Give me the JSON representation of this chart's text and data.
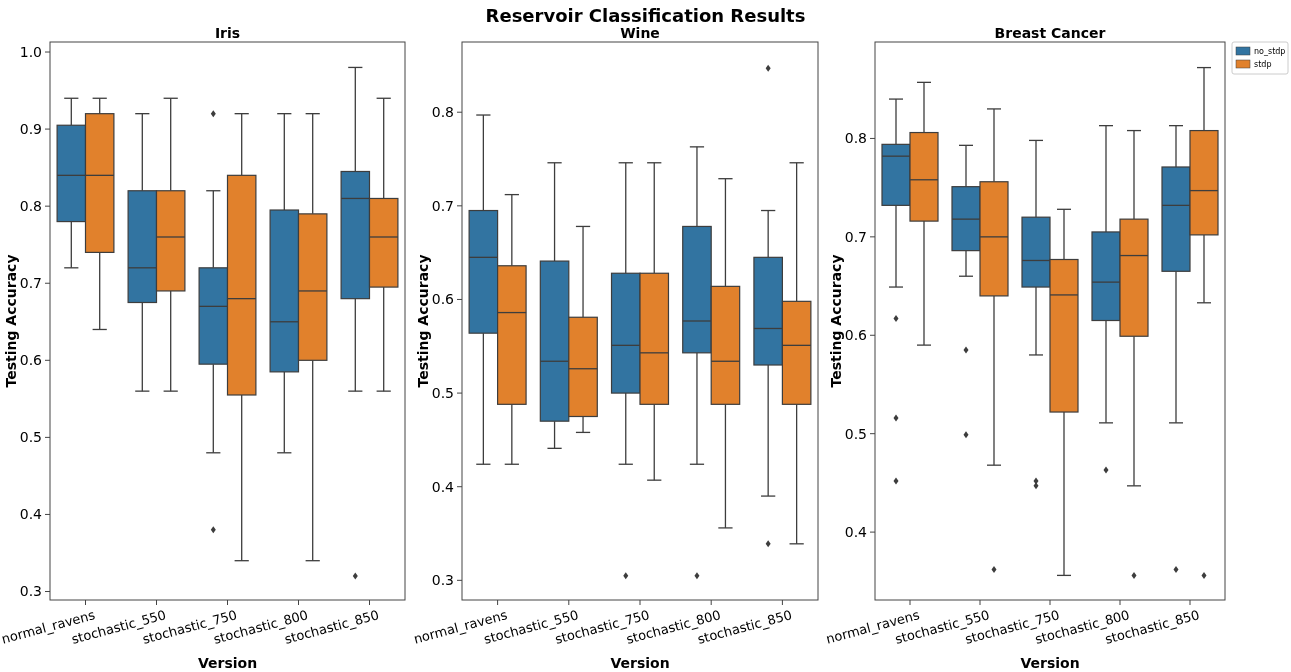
{
  "chart_data": [
    {
      "type": "box",
      "title": "Iris",
      "xlabel": "Version",
      "ylabel": "Testing Accuracy",
      "annotations": [
        "Reservoir Classification Results"
      ],
      "categories": [
        "normal_ravens",
        "stochastic_550",
        "stochastic_750",
        "stochastic_800",
        "stochastic_850"
      ],
      "ylim": [
        0.289,
        1.013
      ],
      "yticks": [
        0.3,
        0.4,
        0.5,
        0.6,
        0.7,
        0.8,
        0.9,
        {
          "value": 1,
          "label": "1.0"
        }
      ],
      "legend": false,
      "series": [
        {
          "color": "#3274a1",
          "boxes": [
            {
              "low": 0.72,
              "q1": 0.78,
              "median": 0.84,
              "q3": 0.905,
              "high": 0.94
            },
            {
              "low": 0.56,
              "q1": 0.675,
              "median": 0.72,
              "q3": 0.82,
              "high": 0.92
            },
            {
              "low": 0.48,
              "q1": 0.595,
              "median": 0.67,
              "q3": 0.72,
              "high": 0.82,
              "outliers": [
                0.92,
                0.38
              ]
            },
            {
              "low": 0.48,
              "q1": 0.585,
              "median": 0.65,
              "q3": 0.795,
              "high": 0.92
            },
            {
              "low": 0.56,
              "q1": 0.68,
              "median": 0.81,
              "q3": 0.845,
              "high": 0.98,
              "outliers": [
                0.32
              ]
            }
          ]
        },
        {
          "color": "#e1812c",
          "boxes": [
            {
              "low": 0.64,
              "q1": 0.74,
              "median": 0.84,
              "q3": 0.92,
              "high": 0.94
            },
            {
              "low": 0.56,
              "q1": 0.69,
              "median": 0.76,
              "q3": 0.82,
              "high": 0.94
            },
            {
              "low": 0.34,
              "q1": 0.555,
              "median": 0.68,
              "q3": 0.84,
              "high": 0.92
            },
            {
              "low": 0.34,
              "q1": 0.6,
              "median": 0.69,
              "q3": 0.79,
              "high": 0.92
            },
            {
              "low": 0.56,
              "q1": 0.695,
              "median": 0.76,
              "q3": 0.81,
              "high": 0.94
            }
          ]
        }
      ]
    },
    {
      "type": "box",
      "title": "Wine",
      "xlabel": "Version",
      "ylabel": "Testing Accuracy",
      "categories": [
        "normal_ravens",
        "stochastic_550",
        "stochastic_750",
        "stochastic_800",
        "stochastic_850"
      ],
      "ylim": [
        0.279,
        0.875
      ],
      "yticks": [
        0.3,
        0.4,
        0.5,
        0.6,
        0.7,
        0.8
      ],
      "legend": false,
      "series": [
        {
          "color": "#3274a1",
          "boxes": [
            {
              "low": 0.424,
              "q1": 0.564,
              "median": 0.645,
              "q3": 0.695,
              "high": 0.797
            },
            {
              "low": 0.441,
              "q1": 0.47,
              "median": 0.534,
              "q3": 0.641,
              "high": 0.746
            },
            {
              "low": 0.424,
              "q1": 0.5,
              "median": 0.551,
              "q3": 0.628,
              "high": 0.746,
              "outliers": [
                0.305
              ]
            },
            {
              "low": 0.424,
              "q1": 0.543,
              "median": 0.577,
              "q3": 0.678,
              "high": 0.763,
              "outliers": [
                0.305
              ]
            },
            {
              "low": 0.39,
              "q1": 0.53,
              "median": 0.569,
              "q3": 0.645,
              "high": 0.695,
              "outliers": [
                0.847,
                0.339
              ]
            }
          ]
        },
        {
          "color": "#e1812c",
          "boxes": [
            {
              "low": 0.424,
              "q1": 0.488,
              "median": 0.586,
              "q3": 0.636,
              "high": 0.712
            },
            {
              "low": 0.458,
              "q1": 0.475,
              "median": 0.526,
              "q3": 0.581,
              "high": 0.678
            },
            {
              "low": 0.407,
              "q1": 0.488,
              "median": 0.543,
              "q3": 0.628,
              "high": 0.746
            },
            {
              "low": 0.356,
              "q1": 0.488,
              "median": 0.534,
              "q3": 0.614,
              "high": 0.729
            },
            {
              "low": 0.339,
              "q1": 0.488,
              "median": 0.551,
              "q3": 0.598,
              "high": 0.746
            }
          ]
        }
      ]
    },
    {
      "type": "box",
      "title": "Breast Cancer",
      "xlabel": "Version",
      "ylabel": "Testing Accuracy",
      "categories": [
        "normal_ravens",
        "stochastic_550",
        "stochastic_750",
        "stochastic_800",
        "stochastic_850"
      ],
      "ylim": [
        0.331,
        0.898
      ],
      "yticks": [
        0.4,
        0.5,
        0.6,
        0.7,
        0.8
      ],
      "legend": "top right",
      "series": [
        {
          "name": "no_stdp",
          "color": "#3274a1",
          "boxes": [
            {
              "low": 0.649,
              "q1": 0.732,
              "median": 0.782,
              "q3": 0.794,
              "high": 0.84,
              "outliers": [
                0.617,
                0.516,
                0.452
              ]
            },
            {
              "low": 0.66,
              "q1": 0.686,
              "median": 0.718,
              "q3": 0.751,
              "high": 0.793,
              "outliers": [
                0.585,
                0.499
              ]
            },
            {
              "low": 0.58,
              "q1": 0.649,
              "median": 0.676,
              "q3": 0.72,
              "high": 0.798,
              "outliers": [
                0.452,
                0.447
              ]
            },
            {
              "low": 0.511,
              "q1": 0.615,
              "median": 0.654,
              "q3": 0.705,
              "high": 0.813,
              "outliers": [
                0.463
              ]
            },
            {
              "low": 0.511,
              "q1": 0.665,
              "median": 0.732,
              "q3": 0.771,
              "high": 0.813,
              "outliers": [
                0.362
              ]
            }
          ]
        },
        {
          "name": "stdp",
          "color": "#e1812c",
          "boxes": [
            {
              "low": 0.59,
              "q1": 0.716,
              "median": 0.758,
              "q3": 0.806,
              "high": 0.857
            },
            {
              "low": 0.468,
              "q1": 0.64,
              "median": 0.7,
              "q3": 0.756,
              "high": 0.83,
              "outliers": [
                0.362
              ]
            },
            {
              "low": 0.356,
              "q1": 0.522,
              "median": 0.641,
              "q3": 0.677,
              "high": 0.728
            },
            {
              "low": 0.447,
              "q1": 0.599,
              "median": 0.681,
              "q3": 0.718,
              "high": 0.808,
              "outliers": [
                0.356
              ]
            },
            {
              "low": 0.633,
              "q1": 0.702,
              "median": 0.747,
              "q3": 0.808,
              "high": 0.872,
              "outliers": [
                0.356
              ]
            }
          ]
        }
      ]
    }
  ]
}
